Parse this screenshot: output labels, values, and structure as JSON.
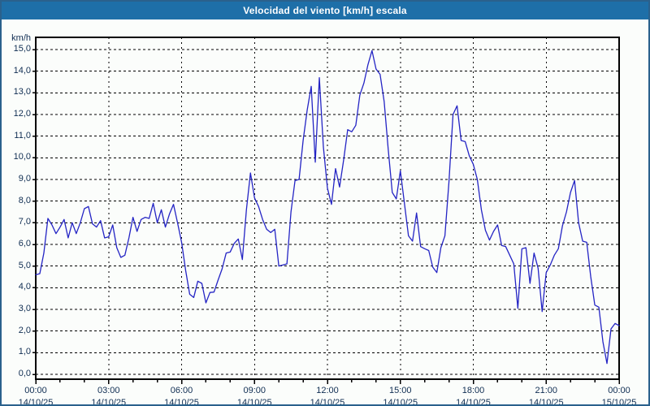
{
  "window": {
    "title": "Velocidad del viento [km/h] escala",
    "title_bar_color": "#1e6fa8",
    "border_color": "#2a618c",
    "background": "#fbfdfb"
  },
  "chart_data": {
    "type": "line",
    "title": "Velocidad del viento [km/h] escala",
    "ylabel": "km/h",
    "xlabel": "",
    "ylim": [
      0,
      15
    ],
    "grid": "dashed",
    "legend": "none",
    "line_color": "#2424c4",
    "grid_color": "#000000",
    "axis_color": "#000000",
    "tick_label_color": "#0f2d52",
    "y_ticks": [
      "15,0",
      "14,0",
      "13,0",
      "12,0",
      "11,0",
      "10,0",
      "9,0",
      "8,0",
      "7,0",
      "6,0",
      "5,0",
      "4,0",
      "3,0",
      "2,0",
      "1,0",
      "0,0"
    ],
    "y_tick_values": [
      15,
      14,
      13,
      12,
      11,
      10,
      9,
      8,
      7,
      6,
      5,
      4,
      3,
      2,
      1,
      0
    ],
    "x_ticks": [
      {
        "time": "00:00",
        "date": "14/10/25"
      },
      {
        "time": "03:00",
        "date": "14/10/25"
      },
      {
        "time": "06:00",
        "date": "14/10/25"
      },
      {
        "time": "09:00",
        "date": "14/10/25"
      },
      {
        "time": "12:00",
        "date": "14/10/25"
      },
      {
        "time": "15:00",
        "date": "14/10/25"
      },
      {
        "time": "18:00",
        "date": "14/10/25"
      },
      {
        "time": "21:00",
        "date": "14/10/25"
      },
      {
        "time": "00:00",
        "date": "15/10/25"
      }
    ],
    "x_major_every_hours": 3,
    "x_minor_every_hours": 1,
    "x_span_hours": 24,
    "series": [
      {
        "name": "Velocidad del viento [km/h]",
        "x_start": "14/10/25 00:00",
        "x_end": "15/10/25 00:00",
        "x_step_minutes": 10,
        "values": [
          4.6,
          4.65,
          5.6,
          7.2,
          6.9,
          6.5,
          6.8,
          7.15,
          6.3,
          7.0,
          6.5,
          7.0,
          7.65,
          7.75,
          6.95,
          6.8,
          7.1,
          6.3,
          6.35,
          6.9,
          5.85,
          5.4,
          5.5,
          6.3,
          7.25,
          6.6,
          7.15,
          7.25,
          7.2,
          7.9,
          7.0,
          7.6,
          6.8,
          7.4,
          7.85,
          7.0,
          6.1,
          4.8,
          3.7,
          3.55,
          4.3,
          4.2,
          3.3,
          3.78,
          3.8,
          4.35,
          4.87,
          5.6,
          5.65,
          6.05,
          6.25,
          5.3,
          7.6,
          9.3,
          8.15,
          7.75,
          7.15,
          6.7,
          6.55,
          6.7,
          5.0,
          5.05,
          5.1,
          7.5,
          8.95,
          9.0,
          10.8,
          12.2,
          13.3,
          9.8,
          13.7,
          10.5,
          8.6,
          7.85,
          9.5,
          8.65,
          9.9,
          11.3,
          11.2,
          11.5,
          12.9,
          13.45,
          14.3,
          14.95,
          14.1,
          13.85,
          12.6,
          10.4,
          8.4,
          8.1,
          9.4,
          7.9,
          6.4,
          6.15,
          7.45,
          5.9,
          5.8,
          5.72,
          4.95,
          4.7,
          5.85,
          6.4,
          8.9,
          12.0,
          12.4,
          10.8,
          10.75,
          10.1,
          9.7,
          9.0,
          7.6,
          6.65,
          6.2,
          6.6,
          6.9,
          5.95,
          5.9,
          5.5,
          5.1,
          3.05,
          5.8,
          5.85,
          4.2,
          5.6,
          4.9,
          2.9,
          4.7,
          5.05,
          5.5,
          5.8,
          6.85,
          7.5,
          8.4,
          8.95,
          7.0,
          6.15,
          6.1,
          4.5,
          3.2,
          3.1,
          1.5,
          0.5,
          2.1,
          2.35,
          2.25
        ]
      }
    ]
  }
}
